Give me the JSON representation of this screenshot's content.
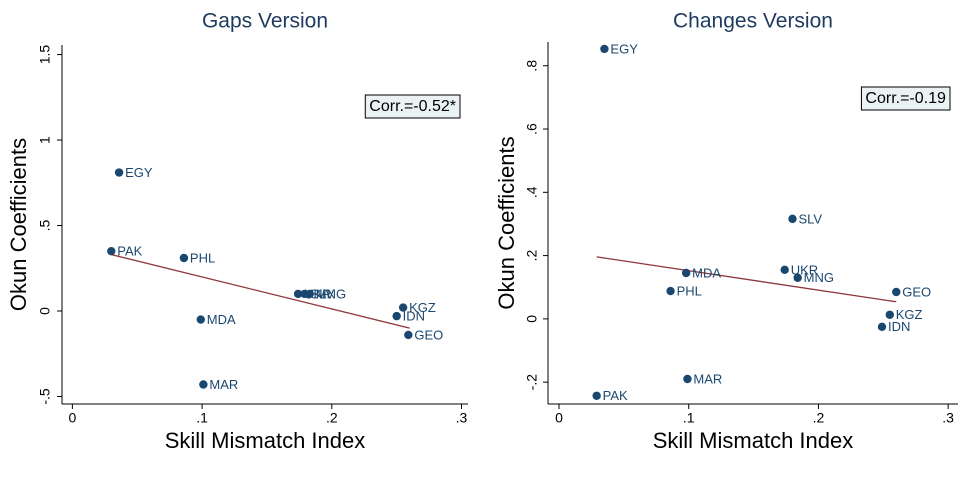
{
  "chart_data": [
    {
      "type": "scatter",
      "title": "Gaps Version",
      "x_label": "Skill Mismatch Index",
      "y_label": "Okun Coefficients",
      "annotation": "Corr.=-0.52*",
      "color": "#1a476f",
      "fit_color": "#90353b",
      "xlim": [
        -0.008,
        0.305
      ],
      "ylim": [
        -0.544,
        1.556
      ],
      "xticks": [
        0,
        {
          "value": 0.1,
          "label": ".1"
        },
        {
          "value": 0.2,
          "label": ".2"
        },
        {
          "value": 0.3,
          "label": ".3"
        }
      ],
      "yticks": [
        {
          "value": -0.5,
          "label": "-.5"
        },
        0,
        {
          "value": 0.5,
          "label": ".5"
        },
        1,
        1.5
      ],
      "point_labels": [
        "EGY",
        "PAK",
        "PHL",
        "MDA",
        "MAR",
        "UKR",
        "SLV",
        "MNG",
        "KGZ",
        "IDN",
        "GEO"
      ],
      "x": [
        0.036,
        0.03,
        0.086,
        0.099,
        0.101,
        0.174,
        0.179,
        0.183,
        0.255,
        0.25,
        0.259
      ],
      "values": [
        0.81,
        0.35,
        0.31,
        -0.05,
        -0.43,
        0.1,
        0.1,
        0.1,
        0.02,
        -0.03,
        -0.14
      ],
      "fit_line": {
        "x": [
          0.03,
          0.26
        ],
        "y": [
          0.33,
          -0.1
        ]
      }
    },
    {
      "type": "scatter",
      "title": "Changes Version",
      "x_label": "Skill Mismatch Index",
      "y_label": "Okun Coefficients",
      "annotation": "Corr.=-0.19",
      "color": "#1a476f",
      "fit_color": "#90353b",
      "xlim": [
        -0.0085,
        0.3076
      ],
      "ylim": [
        -0.269,
        0.875
      ],
      "xticks": [
        0,
        {
          "value": 0.1,
          "label": ".1"
        },
        {
          "value": 0.2,
          "label": ".2"
        },
        {
          "value": 0.3,
          "label": ".3"
        }
      ],
      "yticks": [
        {
          "value": -0.2,
          "label": "-.2"
        },
        0,
        {
          "value": 0.2,
          "label": ".2"
        },
        {
          "value": 0.4,
          "label": ".4"
        },
        {
          "value": 0.6,
          "label": ".6"
        },
        {
          "value": 0.8,
          "label": ".8"
        }
      ],
      "point_labels": [
        "EGY",
        "SLV",
        "UKR",
        "MNG",
        "MDA",
        "PHL",
        "GEO",
        "KGZ",
        "IDN",
        "MAR",
        "PAK"
      ],
      "x": [
        0.035,
        0.18,
        0.174,
        0.184,
        0.098,
        0.086,
        0.26,
        0.255,
        0.249,
        0.099,
        0.029
      ],
      "values": [
        0.853,
        0.316,
        0.155,
        0.13,
        0.145,
        0.088,
        0.085,
        0.013,
        -0.025,
        -0.19,
        -0.243
      ],
      "fit_line": {
        "x": [
          0.029,
          0.26
        ],
        "y": [
          0.196,
          0.054
        ]
      }
    }
  ]
}
